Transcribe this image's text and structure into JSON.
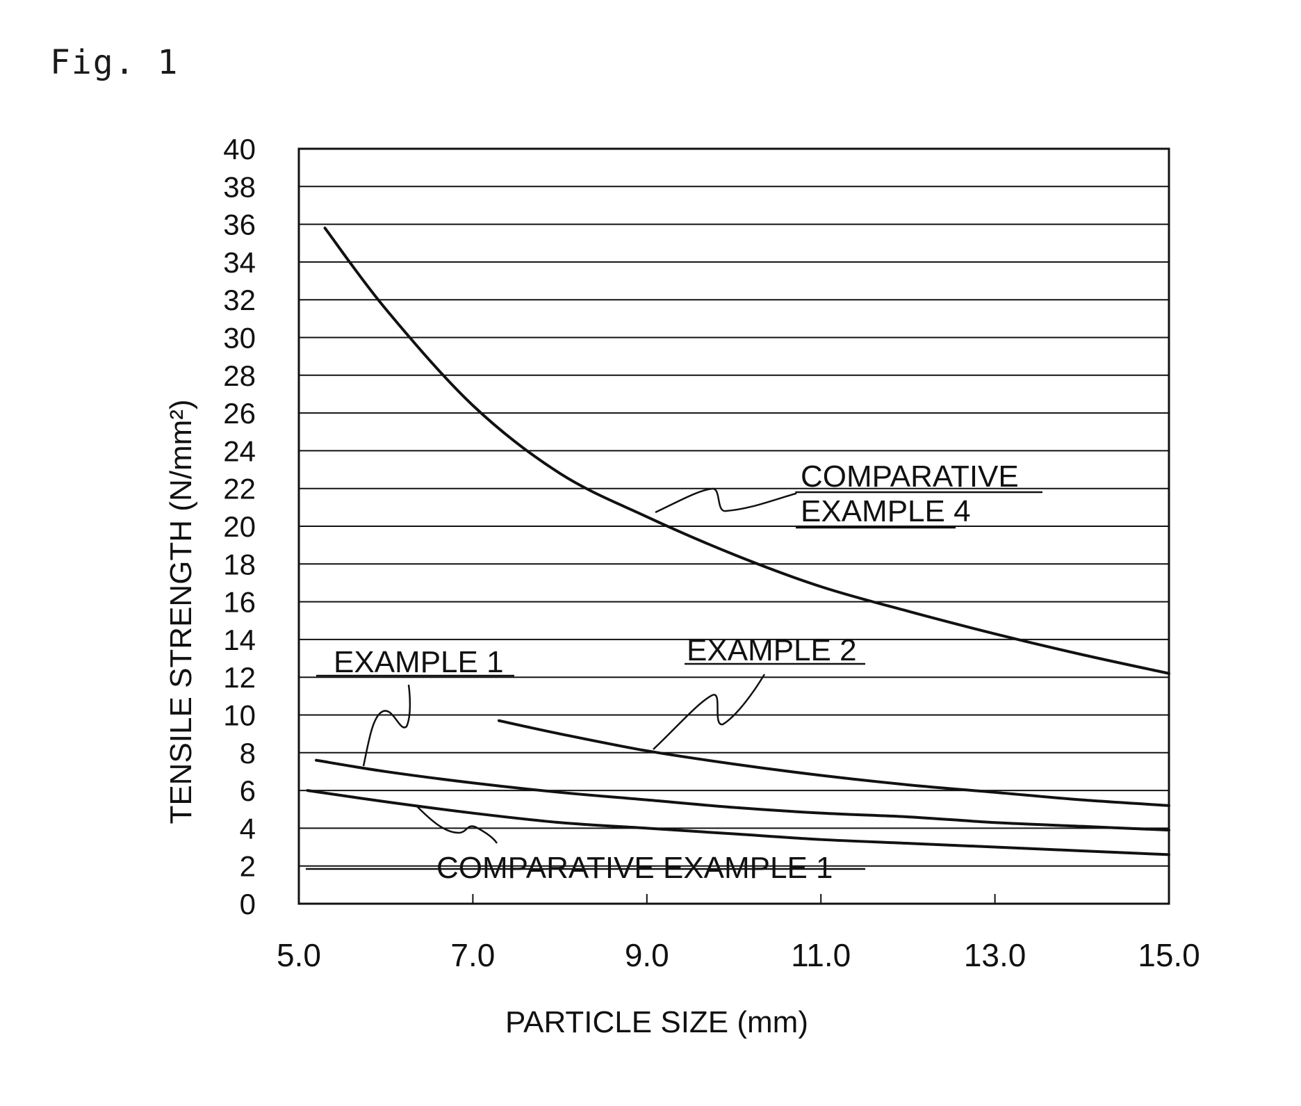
{
  "figure_label": "Fig. 1",
  "chart_data": {
    "type": "line",
    "title": "",
    "xlabel": "PARTICLE SIZE (mm)",
    "ylabel": "TENSILE STRENGTH (N/mm²)",
    "xlim": [
      5.0,
      15.0
    ],
    "ylim": [
      0,
      40
    ],
    "xticks": [
      "5.0",
      "7.0",
      "9.0",
      "11.0",
      "13.0",
      "15.0"
    ],
    "yticks": [
      "0",
      "2",
      "4",
      "6",
      "8",
      "10",
      "12",
      "14",
      "16",
      "18",
      "20",
      "22",
      "24",
      "26",
      "28",
      "30",
      "32",
      "34",
      "36",
      "38",
      "40"
    ],
    "grid": "horizontal",
    "line_color": "#111111",
    "series": [
      {
        "name": "COMPARATIVE EXAMPLE 4",
        "x": [
          5.3,
          6.0,
          7.0,
          8.0,
          9.0,
          10.0,
          11.0,
          12.0,
          13.0,
          14.0,
          15.0
        ],
        "y": [
          35.8,
          31.5,
          26.4,
          22.8,
          20.5,
          18.5,
          16.8,
          15.5,
          14.3,
          13.2,
          12.2
        ]
      },
      {
        "name": "EXAMPLE 2",
        "x": [
          7.3,
          8.0,
          9.0,
          10.0,
          11.0,
          12.0,
          13.0,
          14.0,
          15.0
        ],
        "y": [
          9.7,
          9.0,
          8.1,
          7.4,
          6.8,
          6.3,
          5.9,
          5.5,
          5.2
        ]
      },
      {
        "name": "EXAMPLE 1",
        "x": [
          5.2,
          6.0,
          7.0,
          8.0,
          9.0,
          10.0,
          11.0,
          12.0,
          13.0,
          14.0,
          15.0
        ],
        "y": [
          7.6,
          7.0,
          6.4,
          5.9,
          5.5,
          5.1,
          4.8,
          4.6,
          4.3,
          4.1,
          3.9
        ]
      },
      {
        "name": "COMPARATIVE EXAMPLE 1",
        "x": [
          5.1,
          6.0,
          7.0,
          8.0,
          9.0,
          10.0,
          11.0,
          12.0,
          13.0,
          14.0,
          15.0
        ],
        "y": [
          6.0,
          5.4,
          4.8,
          4.3,
          4.0,
          3.7,
          3.4,
          3.2,
          3.0,
          2.8,
          2.6
        ]
      }
    ],
    "annotations": [
      {
        "line1": "COMPARATIVE",
        "line2": "EXAMPLE 4"
      },
      {
        "text": "EXAMPLE 2"
      },
      {
        "text": "EXAMPLE 1"
      },
      {
        "text": "COMPARATIVE EXAMPLE 1"
      }
    ]
  }
}
